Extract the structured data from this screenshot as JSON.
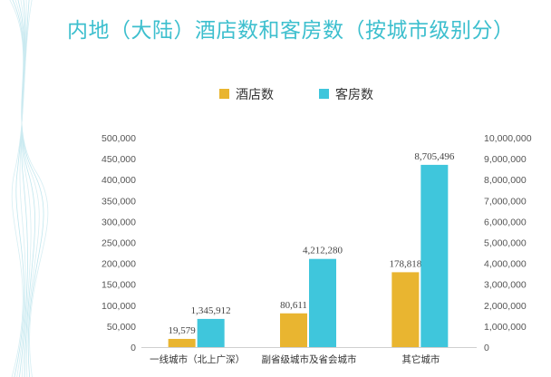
{
  "title": "内地（大陆）酒店数和客房数（按城市级别分）",
  "colors": {
    "hotels": "#e9b530",
    "rooms": "#3fc6dc",
    "title": "#3dbfce"
  },
  "chart_data": {
    "type": "bar",
    "title": "内地（大陆）酒店数和客房数（按城市级别分）",
    "categories": [
      "一线城市（北上广深）",
      "副省级城市及省会城市",
      "其它城市"
    ],
    "series": [
      {
        "name": "酒店数",
        "axis": "left",
        "color": "#e9b530",
        "values": [
          19579,
          80611,
          178818
        ],
        "labels": [
          "19,579",
          "80,611",
          "178,818"
        ]
      },
      {
        "name": "客房数",
        "axis": "right",
        "color": "#3fc6dc",
        "values": [
          1345912,
          4212280,
          8705496
        ],
        "labels": [
          "1,345,912",
          "4,212,280",
          "8,705,496"
        ]
      }
    ],
    "y_left": {
      "min": 0,
      "max": 500000,
      "ticks": [
        "0",
        "50,000",
        "100,000",
        "150,000",
        "200,000",
        "250,000",
        "300,000",
        "350,000",
        "400,000",
        "450,000",
        "500,000"
      ]
    },
    "y_right": {
      "min": 0,
      "max": 10000000,
      "ticks": [
        "0",
        "1,000,000",
        "2,000,000",
        "3,000,000",
        "4,000,000",
        "5,000,000",
        "6,000,000",
        "7,000,000",
        "8,000,000",
        "9,000,000",
        "10,000,000"
      ]
    },
    "legend_position": "top-center",
    "grid": false
  }
}
